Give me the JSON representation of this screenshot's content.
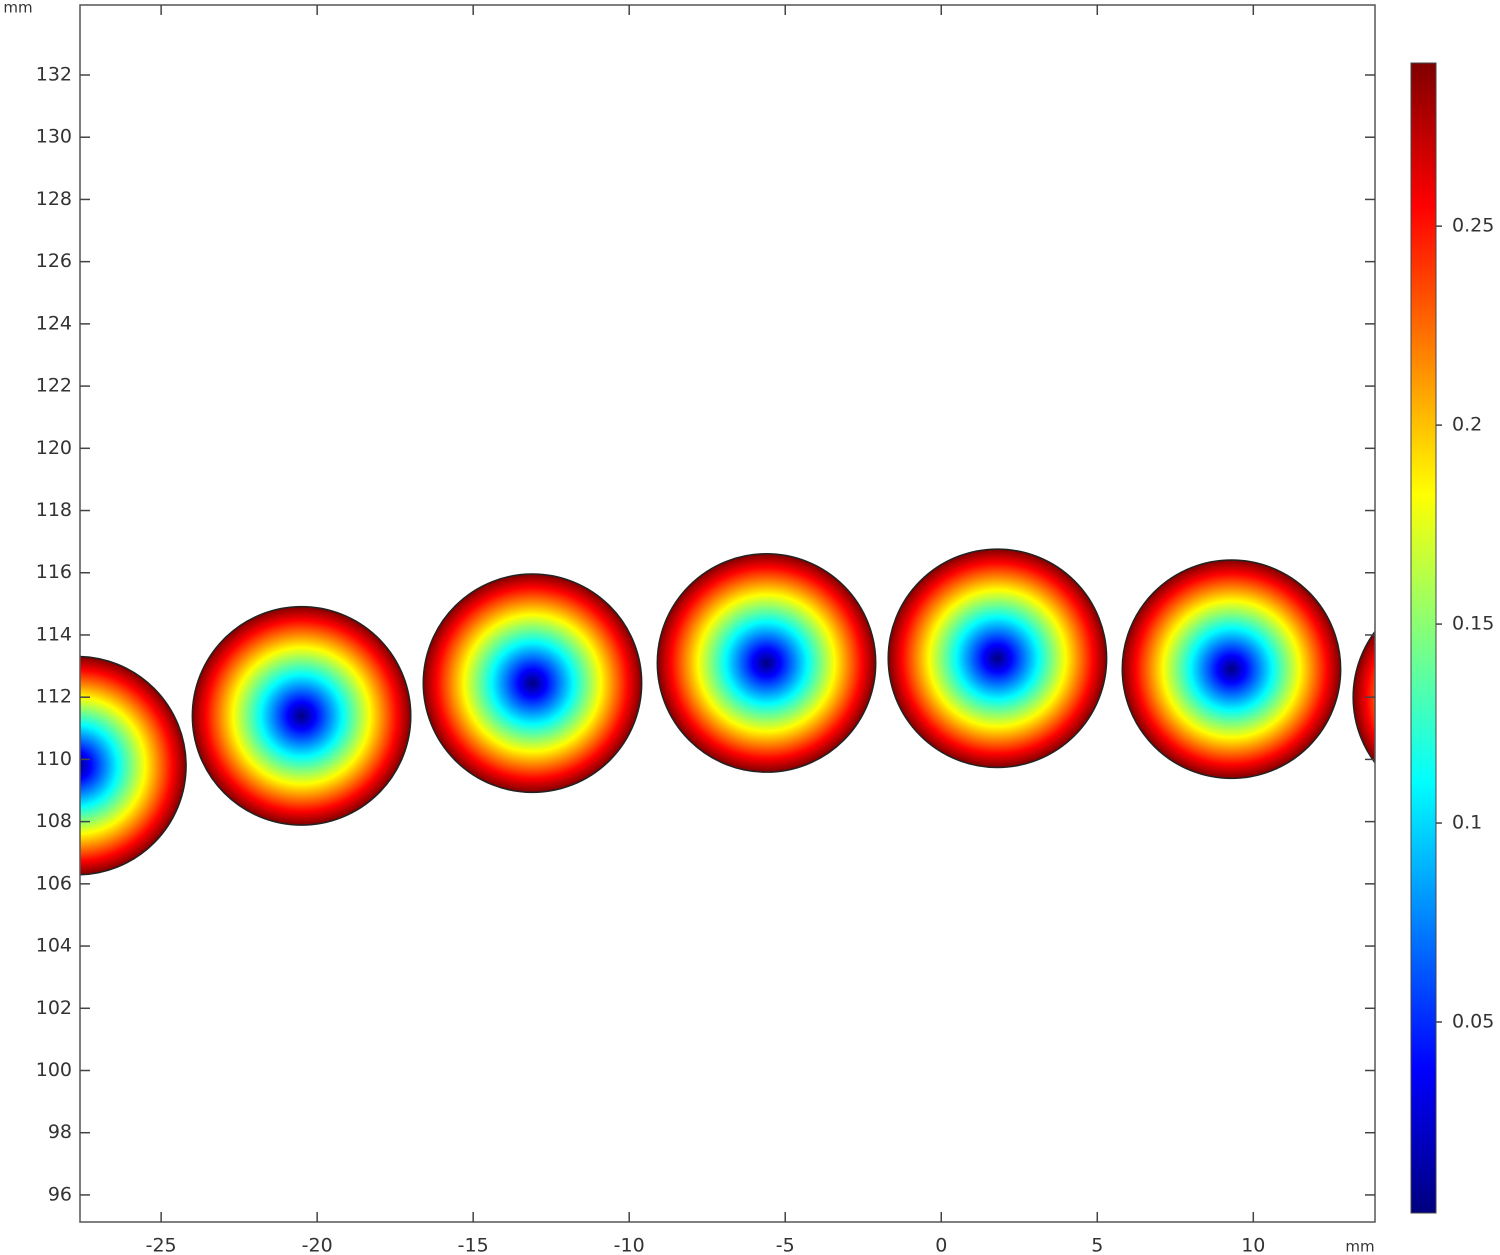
{
  "chart_data": {
    "type": "circles",
    "x_label": "mm",
    "y_label": "mm",
    "x": [
      -27.7,
      -20.5,
      -13.1,
      -5.6,
      1.8,
      9.3,
      16.7
    ],
    "values": [
      109.8,
      111.4,
      112.45,
      113.1,
      113.25,
      112.9,
      112.0
    ],
    "radius": [
      3.5,
      3.5,
      3.5,
      3.5,
      3.5,
      3.5,
      3.5
    ],
    "xlim": [
      -27.6,
      13.9
    ],
    "ylim": [
      95.13,
      134.25
    ],
    "xticks": [
      -25,
      -20,
      -15,
      -10,
      -5,
      0,
      5,
      10
    ],
    "yticks": [
      96,
      98,
      100,
      102,
      104,
      106,
      108,
      110,
      112,
      114,
      116,
      118,
      120,
      122,
      124,
      126,
      128,
      130,
      132
    ],
    "clim": [
      0.002,
      0.291
    ],
    "cticks": [
      0.05,
      0.1,
      0.15,
      0.2,
      0.25
    ],
    "colormap": [
      "#00007f",
      "#0000ff",
      "#007fff",
      "#00ffff",
      "#7fff7f",
      "#ffff00",
      "#ff7f00",
      "#ff0000",
      "#7f0000"
    ]
  }
}
